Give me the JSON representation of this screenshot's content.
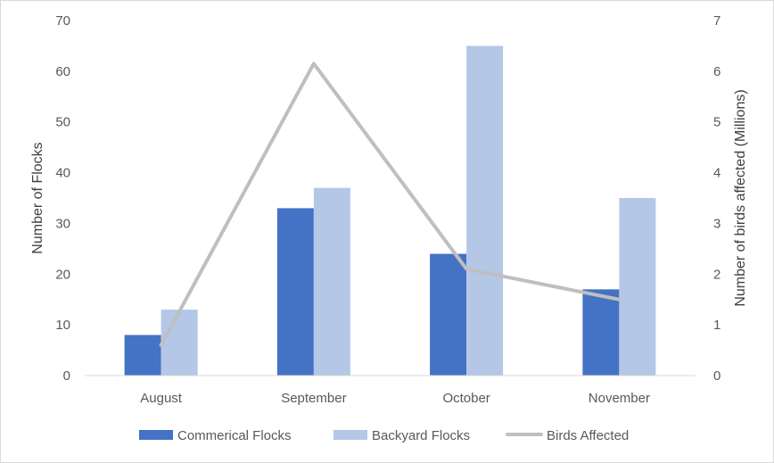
{
  "chart_data": {
    "type": "bar",
    "categories": [
      "August",
      "September",
      "October",
      "November"
    ],
    "series": [
      {
        "name": "Commerical Flocks",
        "type": "bar",
        "axis": "left",
        "color": "#4472c4",
        "values": [
          8,
          33,
          24,
          17
        ]
      },
      {
        "name": "Backyard Flocks",
        "type": "bar",
        "axis": "left",
        "color": "#b4c7e7",
        "values": [
          13,
          37,
          65,
          35
        ]
      },
      {
        "name": "Birds Affected",
        "type": "line",
        "axis": "right",
        "color": "#bfbfbf",
        "values": [
          0.6,
          6.15,
          2.1,
          1.5
        ]
      }
    ],
    "ylabel": "Number of Flocks",
    "y2label": "Number of birds affected (Millions)",
    "ylim": [
      0,
      70
    ],
    "y2lim": [
      0,
      7
    ],
    "yticks": [
      0,
      10,
      20,
      30,
      40,
      50,
      60,
      70
    ],
    "y2ticks": [
      0,
      1,
      2,
      3,
      4,
      5,
      6,
      7
    ],
    "grid": false,
    "legend": "bottom"
  }
}
